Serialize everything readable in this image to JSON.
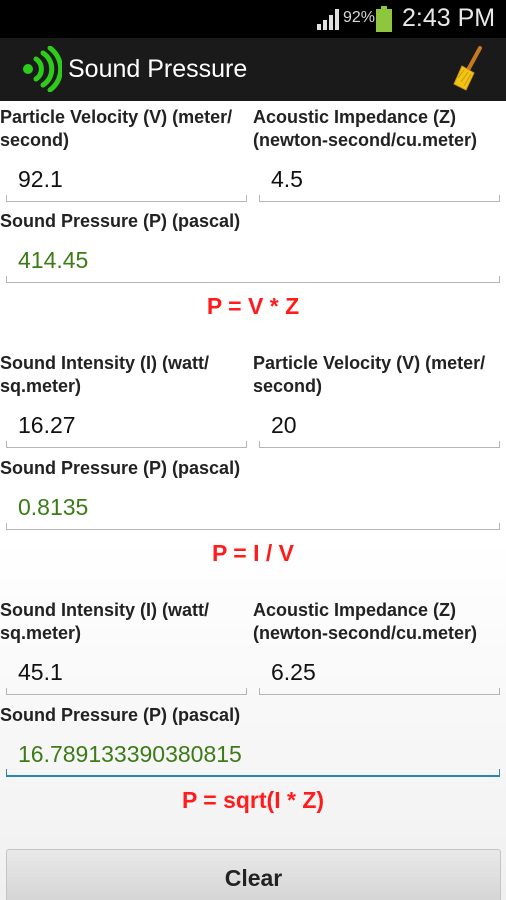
{
  "status_bar": {
    "battery_percent": "92%",
    "time": "2:43 PM",
    "battery_level": 0.92,
    "icons": [
      "signal-icon",
      "battery-icon"
    ]
  },
  "action_bar": {
    "title": "Sound Pressure",
    "icons": [
      "app-logo-icon",
      "broom-clear-icon"
    ]
  },
  "sections": [
    {
      "left_label": "Particle Velocity (V) (meter/\nsecond)",
      "left_value": "92.1",
      "right_label": "Acoustic Impedance (Z)\n(newton-second/cu.meter)",
      "right_value": "4.5",
      "result_label": "Sound Pressure (P) (pascal)",
      "result_value": "414.45",
      "formula": "P = V * Z"
    },
    {
      "left_label": "Sound Intensity (I) (watt/\nsq.meter)",
      "left_value": "16.27",
      "right_label": "Particle Velocity (V) (meter/\nsecond)",
      "right_value": "20",
      "result_label": "Sound Pressure (P) (pascal)",
      "result_value": "0.8135",
      "formula": "P = I / V"
    },
    {
      "left_label": "Sound Intensity (I) (watt/\nsq.meter)",
      "left_value": "45.1",
      "right_label": "Acoustic Impedance (Z)\n(newton-second/cu.meter)",
      "right_value": "6.25",
      "result_label": "Sound Pressure (P) (pascal)",
      "result_value": "16.789133390380815",
      "formula": "P = sqrt(I * Z)"
    }
  ],
  "clear_button": {
    "label": "Clear"
  },
  "colors": {
    "result_text": "#3c7b18",
    "formula_text": "#ff1c1c",
    "focus_underline": "#2a86b4",
    "app_icon_green": "#2ecc1a"
  }
}
